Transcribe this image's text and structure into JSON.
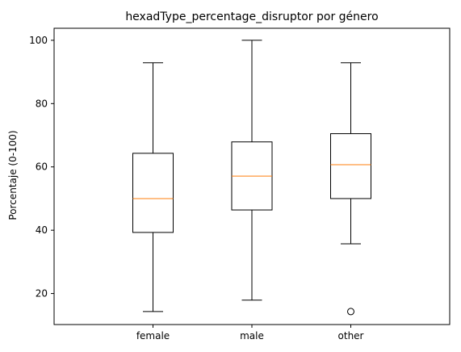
{
  "chart_data": {
    "type": "boxplot",
    "title": "hexadType_percentage_disruptor por género",
    "xlabel": "",
    "ylabel": "Porcentaje (0-100)",
    "categories": [
      "female",
      "male",
      "other"
    ],
    "ylim": [
      10.2,
      103.8
    ],
    "yticks": [
      20,
      40,
      60,
      80,
      100
    ],
    "grid": false,
    "boxes": [
      {
        "label": "female",
        "whisker_low": 14.3,
        "q1": 39.3,
        "median": 50.0,
        "q3": 64.3,
        "whisker_high": 92.9,
        "outliers": []
      },
      {
        "label": "male",
        "whisker_low": 17.9,
        "q1": 46.4,
        "median": 57.1,
        "q3": 67.9,
        "whisker_high": 100.0,
        "outliers": []
      },
      {
        "label": "other",
        "whisker_low": 35.7,
        "q1": 50.0,
        "median": 60.7,
        "q3": 70.5,
        "whisker_high": 92.9,
        "outliers": [
          14.3
        ]
      }
    ],
    "colors": {
      "box": "#000000",
      "median": "#ff7f0e",
      "outlier": "#000000"
    }
  }
}
